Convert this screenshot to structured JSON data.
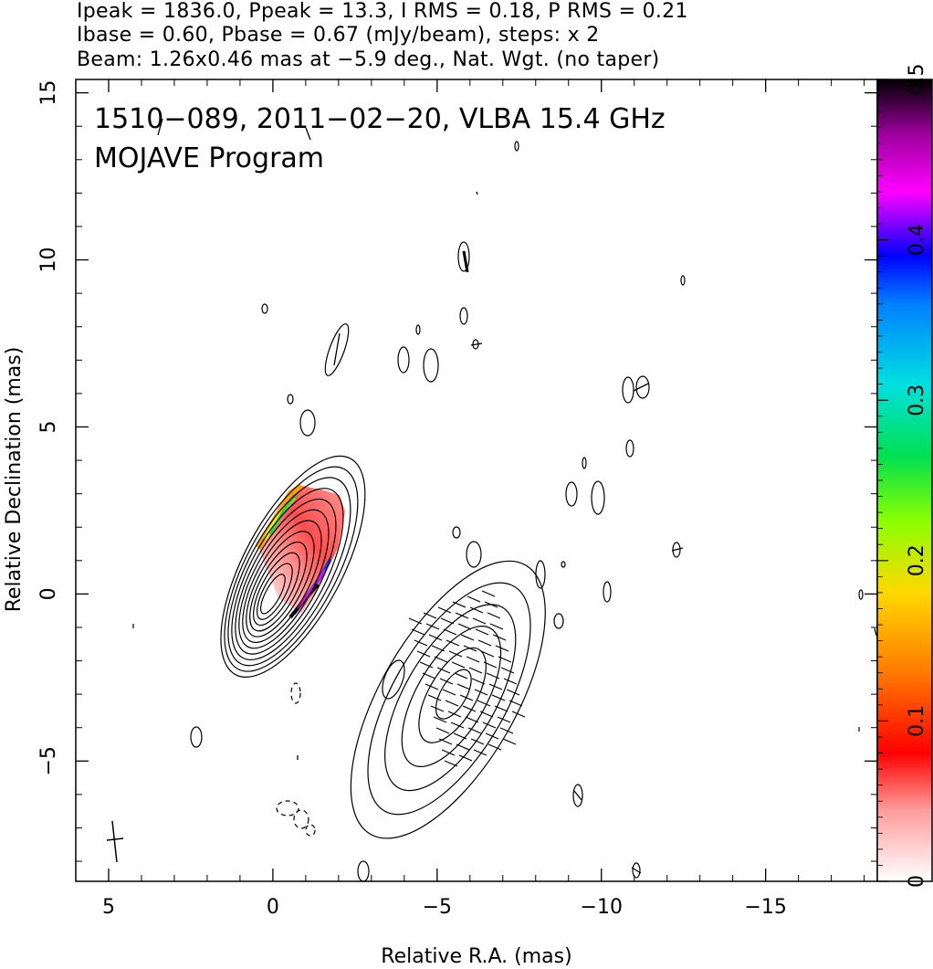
{
  "header": {
    "line1": "Ipeak = 1836.0, Ppeak = 13.3, I RMS = 0.18, P RMS = 0.21",
    "line2": "Ibase = 0.60, Pbase = 0.67 (mJy/beam), steps: x 2",
    "line3": "Beam: 1.26x0.46 mas at −5.9 deg., Nat. Wgt. (no taper)"
  },
  "annotation": {
    "line1": "1510−089, 2011−02−20, VLBA 15.4 GHz",
    "line2": "MOJAVE Program"
  },
  "chart_data": {
    "type": "heatmap",
    "title": "",
    "xlabel": "Relative R.A. (mas)",
    "ylabel": "Relative Declination (mas)",
    "xlim": [
      6,
      -18.4
    ],
    "ylim": [
      -8.6,
      15.4
    ],
    "x_ticks": [
      5,
      0,
      -5,
      -10,
      -15
    ],
    "x_tick_labels": [
      "5",
      "0",
      "−5",
      "−10",
      "−15"
    ],
    "y_ticks": [
      15,
      10,
      5,
      0,
      -5
    ],
    "y_tick_labels": [
      "15",
      "10",
      "5",
      "0",
      "−5"
    ],
    "colorbar": {
      "range": [
        0,
        0.5
      ],
      "ticks": [
        0,
        0.1,
        0.2,
        0.3,
        0.4,
        0.5
      ],
      "tick_labels": [
        "0",
        "0.1",
        "0.2",
        "0.3",
        "0.4",
        "0.5"
      ],
      "colors": [
        "#ffffff",
        "#ff6a6a",
        "#ff0000",
        "#ff9000",
        "#ffff00",
        "#00ff00",
        "#00ffff",
        "#0080ff",
        "#0000ff",
        "#ff00ff",
        "#800080",
        "#000000"
      ]
    },
    "core_component": {
      "center": [
        0,
        0
      ],
      "contour_count": 12
    },
    "jet_component": {
      "center": [
        -5.5,
        -3
      ],
      "contour_count": 6
    }
  }
}
